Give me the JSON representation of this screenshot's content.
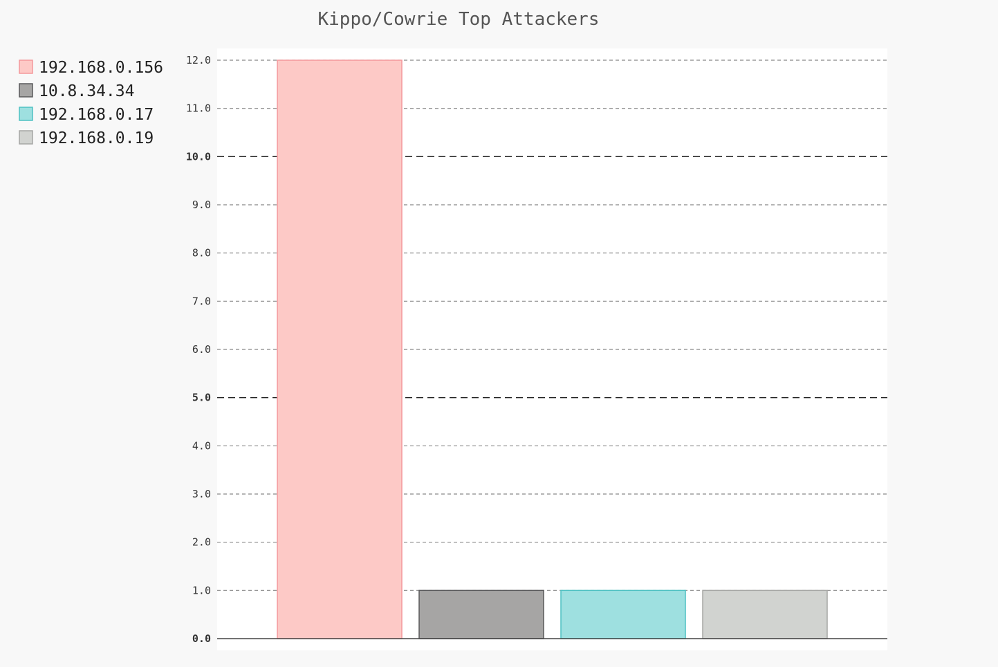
{
  "chart_data": {
    "type": "bar",
    "title": "Kippo/Cowrie Top Attackers",
    "xlabel": "",
    "ylabel": "",
    "ylim": [
      0,
      12
    ],
    "yticks": [
      "0.0",
      "1.0",
      "2.0",
      "3.0",
      "4.0",
      "5.0",
      "6.0",
      "7.0",
      "8.0",
      "9.0",
      "10.0",
      "11.0",
      "12.0"
    ],
    "major_ticks": [
      0,
      5,
      10
    ],
    "grid": true,
    "legend_position": "top-left",
    "series": [
      {
        "name": "192.168.0.156",
        "values": [
          12
        ],
        "fill": "#fdc9c6",
        "stroke": "#f4979b"
      },
      {
        "name": "10.8.34.34",
        "values": [
          1
        ],
        "fill": "#a6a5a4",
        "stroke": "#58585a"
      },
      {
        "name": "192.168.0.17",
        "values": [
          1
        ],
        "fill": "#9ee0e0",
        "stroke": "#4dc1c2"
      },
      {
        "name": "192.168.0.19",
        "values": [
          1
        ],
        "fill": "#d1d3d0",
        "stroke": "#a5a6a4"
      }
    ]
  }
}
